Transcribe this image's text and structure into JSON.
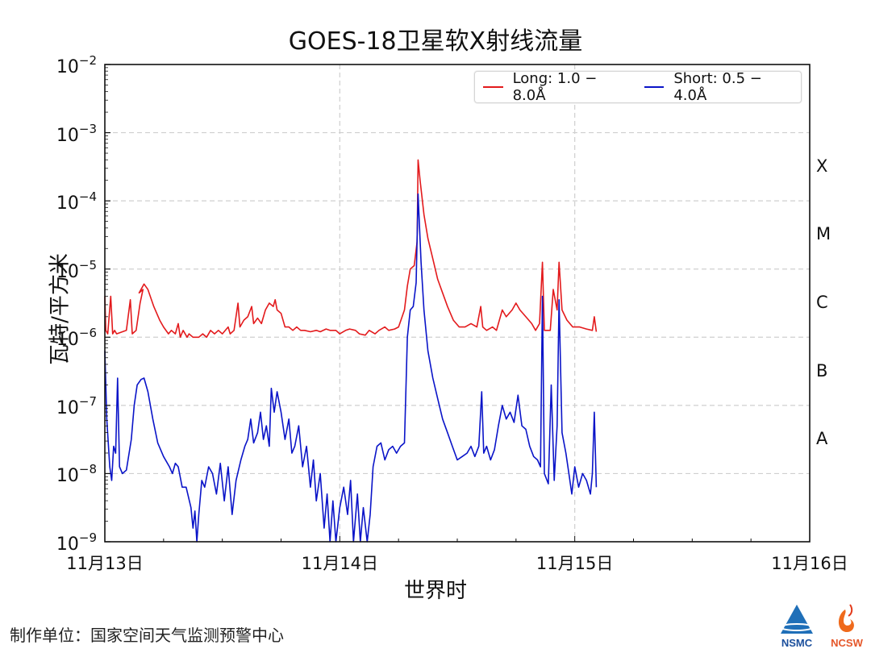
{
  "title": "GOES-18卫星软X射线流量",
  "y_axis": {
    "label": "瓦特/平方米",
    "ticks": [
      {
        "base": "10",
        "exp": "−2"
      },
      {
        "base": "10",
        "exp": "−3"
      },
      {
        "base": "10",
        "exp": "−4"
      },
      {
        "base": "10",
        "exp": "−5"
      },
      {
        "base": "10",
        "exp": "−6"
      },
      {
        "base": "10",
        "exp": "−7"
      },
      {
        "base": "10",
        "exp": "−8"
      },
      {
        "base": "10",
        "exp": "−9"
      }
    ]
  },
  "x_axis": {
    "label": "世界时",
    "ticks": [
      "11月13日",
      "11月14日",
      "11月15日",
      "11月16日"
    ]
  },
  "flare_classes": [
    "X",
    "M",
    "C",
    "B",
    "A"
  ],
  "legend": {
    "long": {
      "label": "Long: 1.0 − 8.0Å",
      "color": "#e31a1c"
    },
    "short": {
      "label": "Short: 0.5 − 4.0Å",
      "color": "#0a14c8"
    }
  },
  "footer": {
    "producer": "制作单位：国家空间天气监测预警中心",
    "logo_left": "NSMC",
    "logo_right": "NCSW"
  },
  "chart_data": {
    "type": "line",
    "title": "GOES-18卫星软X射线流量",
    "xlabel": "世界时",
    "ylabel": "瓦特/平方米",
    "x_unit": "hours since 11月13日 00:00 UT",
    "xlim": [
      0,
      72
    ],
    "ylim": [
      1e-09,
      0.01
    ],
    "yscale": "log",
    "x_tick_labels": [
      "11月13日",
      "11月14日",
      "11月15日",
      "11月16日"
    ],
    "x_tick_positions": [
      0,
      24,
      48,
      72
    ],
    "y_tick_labels": [
      "10^-2",
      "10^-3",
      "10^-4",
      "10^-5",
      "10^-6",
      "10^-7",
      "10^-8",
      "10^-9"
    ],
    "right_axis_labels": [
      "X",
      "M",
      "C",
      "B",
      "A"
    ],
    "grid": true,
    "legend_position": "upper right",
    "series": [
      {
        "name": "Long: 1.0 − 8.0Å",
        "color": "#e31a1c",
        "points_log10": [
          [
            0.0,
            -5.4
          ],
          [
            0.1,
            -5.9
          ],
          [
            0.3,
            -5.95
          ],
          [
            0.6,
            -5.4
          ],
          [
            0.8,
            -5.95
          ],
          [
            1.0,
            -5.9
          ],
          [
            1.2,
            -5.95
          ],
          [
            2.2,
            -5.9
          ],
          [
            2.6,
            -5.45
          ],
          [
            2.8,
            -5.95
          ],
          [
            3.2,
            -5.9
          ],
          [
            3.6,
            -5.5
          ],
          [
            3.9,
            -5.3
          ],
          [
            3.5,
            -5.35
          ],
          [
            4.0,
            -5.22
          ],
          [
            4.4,
            -5.3
          ],
          [
            5.0,
            -5.55
          ],
          [
            5.6,
            -5.75
          ],
          [
            6.0,
            -5.85
          ],
          [
            6.5,
            -5.95
          ],
          [
            6.8,
            -5.9
          ],
          [
            7.2,
            -5.95
          ],
          [
            7.5,
            -5.8
          ],
          [
            7.7,
            -6.0
          ],
          [
            8.0,
            -5.9
          ],
          [
            8.4,
            -6.0
          ],
          [
            8.6,
            -5.95
          ],
          [
            9.0,
            -6.0
          ],
          [
            9.6,
            -6.0
          ],
          [
            10.0,
            -5.95
          ],
          [
            10.4,
            -6.0
          ],
          [
            10.8,
            -5.9
          ],
          [
            11.2,
            -5.95
          ],
          [
            11.6,
            -5.9
          ],
          [
            12.0,
            -5.95
          ],
          [
            12.6,
            -5.85
          ],
          [
            12.8,
            -5.95
          ],
          [
            13.2,
            -5.9
          ],
          [
            13.6,
            -5.5
          ],
          [
            13.8,
            -5.85
          ],
          [
            14.2,
            -5.75
          ],
          [
            14.6,
            -5.7
          ],
          [
            15.0,
            -5.55
          ],
          [
            15.2,
            -5.8
          ],
          [
            15.6,
            -5.72
          ],
          [
            16.0,
            -5.8
          ],
          [
            16.4,
            -5.6
          ],
          [
            16.8,
            -5.5
          ],
          [
            17.2,
            -5.55
          ],
          [
            17.4,
            -5.45
          ],
          [
            17.6,
            -5.6
          ],
          [
            18.0,
            -5.65
          ],
          [
            18.4,
            -5.85
          ],
          [
            18.8,
            -5.85
          ],
          [
            19.2,
            -5.9
          ],
          [
            19.6,
            -5.85
          ],
          [
            20.0,
            -5.9
          ],
          [
            20.4,
            -5.9
          ],
          [
            21.0,
            -5.92
          ],
          [
            21.6,
            -5.9
          ],
          [
            22.0,
            -5.92
          ],
          [
            22.6,
            -5.88
          ],
          [
            23.0,
            -5.9
          ],
          [
            23.6,
            -5.9
          ],
          [
            24.0,
            -5.95
          ],
          [
            24.6,
            -5.9
          ],
          [
            25.0,
            -5.88
          ],
          [
            25.6,
            -5.9
          ],
          [
            26.0,
            -5.95
          ],
          [
            26.6,
            -5.97
          ],
          [
            27.0,
            -5.9
          ],
          [
            27.6,
            -5.95
          ],
          [
            28.0,
            -5.9
          ],
          [
            28.6,
            -5.85
          ],
          [
            29.0,
            -5.9
          ],
          [
            29.6,
            -5.88
          ],
          [
            30.0,
            -5.85
          ],
          [
            30.6,
            -5.6
          ],
          [
            30.9,
            -5.25
          ],
          [
            31.2,
            -5.0
          ],
          [
            31.6,
            -4.95
          ],
          [
            31.9,
            -4.6
          ],
          [
            32.0,
            -3.4
          ],
          [
            32.2,
            -3.7
          ],
          [
            32.6,
            -4.2
          ],
          [
            33.0,
            -4.55
          ],
          [
            33.5,
            -4.85
          ],
          [
            34.0,
            -5.15
          ],
          [
            34.5,
            -5.35
          ],
          [
            35.0,
            -5.55
          ],
          [
            35.6,
            -5.75
          ],
          [
            36.2,
            -5.85
          ],
          [
            36.8,
            -5.85
          ],
          [
            37.4,
            -5.8
          ],
          [
            38.0,
            -5.85
          ],
          [
            38.4,
            -5.55
          ],
          [
            38.6,
            -5.85
          ],
          [
            39.0,
            -5.9
          ],
          [
            39.6,
            -5.85
          ],
          [
            40.0,
            -5.9
          ],
          [
            40.6,
            -5.6
          ],
          [
            41.0,
            -5.7
          ],
          [
            41.6,
            -5.6
          ],
          [
            42.0,
            -5.5
          ],
          [
            42.4,
            -5.6
          ],
          [
            43.0,
            -5.7
          ],
          [
            43.6,
            -5.8
          ],
          [
            44.0,
            -5.9
          ],
          [
            44.4,
            -5.8
          ],
          [
            44.7,
            -4.9
          ],
          [
            44.9,
            -5.9
          ],
          [
            45.5,
            -5.9
          ],
          [
            45.8,
            -5.3
          ],
          [
            46.2,
            -5.6
          ],
          [
            46.4,
            -4.9
          ],
          [
            46.7,
            -5.6
          ],
          [
            47.2,
            -5.75
          ],
          [
            47.8,
            -5.85
          ],
          [
            48.5,
            -5.85
          ],
          [
            49.2,
            -5.88
          ],
          [
            49.8,
            -5.9
          ],
          [
            50.0,
            -5.7
          ],
          [
            50.2,
            -5.92
          ]
        ]
      },
      {
        "name": "Short: 0.5 − 4.0Å",
        "color": "#0a14c8",
        "points_log10": [
          [
            0.0,
            -6.2
          ],
          [
            0.2,
            -7.2
          ],
          [
            0.5,
            -7.9
          ],
          [
            0.7,
            -8.1
          ],
          [
            0.9,
            -7.6
          ],
          [
            1.1,
            -7.7
          ],
          [
            1.3,
            -6.6
          ],
          [
            1.5,
            -7.9
          ],
          [
            1.8,
            -8.0
          ],
          [
            2.2,
            -7.95
          ],
          [
            2.7,
            -7.5
          ],
          [
            3.0,
            -7.0
          ],
          [
            3.3,
            -6.7
          ],
          [
            3.7,
            -6.62
          ],
          [
            4.0,
            -6.6
          ],
          [
            4.4,
            -6.8
          ],
          [
            4.9,
            -7.2
          ],
          [
            5.4,
            -7.55
          ],
          [
            6.0,
            -7.75
          ],
          [
            6.6,
            -7.9
          ],
          [
            6.9,
            -8.0
          ],
          [
            7.2,
            -7.85
          ],
          [
            7.5,
            -7.9
          ],
          [
            7.9,
            -8.2
          ],
          [
            8.3,
            -8.2
          ],
          [
            8.8,
            -8.5
          ],
          [
            9.0,
            -8.8
          ],
          [
            9.2,
            -8.55
          ],
          [
            9.4,
            -9.0
          ],
          [
            9.6,
            -8.6
          ],
          [
            9.9,
            -8.1
          ],
          [
            10.2,
            -8.2
          ],
          [
            10.6,
            -7.9
          ],
          [
            11.0,
            -8.0
          ],
          [
            11.4,
            -8.3
          ],
          [
            11.8,
            -7.85
          ],
          [
            12.2,
            -8.4
          ],
          [
            12.6,
            -7.9
          ],
          [
            13.0,
            -8.6
          ],
          [
            13.4,
            -8.1
          ],
          [
            13.9,
            -7.8
          ],
          [
            14.3,
            -7.6
          ],
          [
            14.6,
            -7.5
          ],
          [
            14.9,
            -7.2
          ],
          [
            15.2,
            -7.55
          ],
          [
            15.6,
            -7.4
          ],
          [
            15.9,
            -7.1
          ],
          [
            16.2,
            -7.5
          ],
          [
            16.5,
            -7.3
          ],
          [
            16.8,
            -7.6
          ],
          [
            17.0,
            -6.75
          ],
          [
            17.3,
            -7.1
          ],
          [
            17.6,
            -6.8
          ],
          [
            18.0,
            -7.1
          ],
          [
            18.4,
            -7.5
          ],
          [
            18.8,
            -7.2
          ],
          [
            19.1,
            -7.7
          ],
          [
            19.4,
            -7.6
          ],
          [
            19.8,
            -7.3
          ],
          [
            20.2,
            -7.9
          ],
          [
            20.6,
            -7.6
          ],
          [
            21.0,
            -8.2
          ],
          [
            21.3,
            -7.8
          ],
          [
            21.6,
            -8.4
          ],
          [
            22.0,
            -8.0
          ],
          [
            22.4,
            -8.8
          ],
          [
            22.7,
            -8.3
          ],
          [
            23.0,
            -9.0
          ],
          [
            23.3,
            -8.4
          ],
          [
            23.6,
            -9.0
          ],
          [
            24.0,
            -8.5
          ],
          [
            24.4,
            -8.2
          ],
          [
            24.8,
            -8.6
          ],
          [
            25.1,
            -8.1
          ],
          [
            25.4,
            -9.0
          ],
          [
            25.8,
            -8.3
          ],
          [
            26.1,
            -9.0
          ],
          [
            26.4,
            -8.5
          ],
          [
            26.8,
            -9.0
          ],
          [
            27.1,
            -8.6
          ],
          [
            27.4,
            -7.9
          ],
          [
            27.8,
            -7.6
          ],
          [
            28.2,
            -7.55
          ],
          [
            28.6,
            -7.8
          ],
          [
            29.0,
            -7.65
          ],
          [
            29.4,
            -7.6
          ],
          [
            29.8,
            -7.7
          ],
          [
            30.2,
            -7.6
          ],
          [
            30.6,
            -7.55
          ],
          [
            30.9,
            -6.0
          ],
          [
            31.2,
            -5.6
          ],
          [
            31.5,
            -5.55
          ],
          [
            31.8,
            -5.2
          ],
          [
            32.0,
            -3.9
          ],
          [
            32.3,
            -4.9
          ],
          [
            32.6,
            -5.6
          ],
          [
            33.0,
            -6.2
          ],
          [
            33.5,
            -6.6
          ],
          [
            34.0,
            -6.9
          ],
          [
            34.5,
            -7.2
          ],
          [
            35.0,
            -7.4
          ],
          [
            35.5,
            -7.6
          ],
          [
            36.0,
            -7.8
          ],
          [
            36.5,
            -7.75
          ],
          [
            37.0,
            -7.7
          ],
          [
            37.4,
            -7.6
          ],
          [
            37.8,
            -7.75
          ],
          [
            38.2,
            -7.6
          ],
          [
            38.5,
            -6.8
          ],
          [
            38.7,
            -7.7
          ],
          [
            39.0,
            -7.6
          ],
          [
            39.4,
            -7.8
          ],
          [
            39.8,
            -7.65
          ],
          [
            40.2,
            -7.3
          ],
          [
            40.6,
            -7.0
          ],
          [
            41.0,
            -7.2
          ],
          [
            41.4,
            -7.1
          ],
          [
            41.8,
            -7.25
          ],
          [
            42.2,
            -6.85
          ],
          [
            42.6,
            -7.3
          ],
          [
            43.0,
            -7.35
          ],
          [
            43.4,
            -7.6
          ],
          [
            43.8,
            -7.75
          ],
          [
            44.2,
            -7.8
          ],
          [
            44.5,
            -7.9
          ],
          [
            44.7,
            -5.4
          ],
          [
            44.9,
            -8.0
          ],
          [
            45.3,
            -8.15
          ],
          [
            45.6,
            -6.7
          ],
          [
            45.9,
            -8.1
          ],
          [
            46.2,
            -7.3
          ],
          [
            46.4,
            -5.45
          ],
          [
            46.7,
            -7.4
          ],
          [
            47.1,
            -7.7
          ],
          [
            47.4,
            -8.0
          ],
          [
            47.7,
            -8.3
          ],
          [
            48.0,
            -7.9
          ],
          [
            48.4,
            -8.2
          ],
          [
            48.8,
            -8.0
          ],
          [
            49.2,
            -8.1
          ],
          [
            49.6,
            -8.3
          ],
          [
            49.8,
            -8.0
          ],
          [
            50.0,
            -7.1
          ],
          [
            50.2,
            -8.2
          ]
        ]
      }
    ]
  }
}
